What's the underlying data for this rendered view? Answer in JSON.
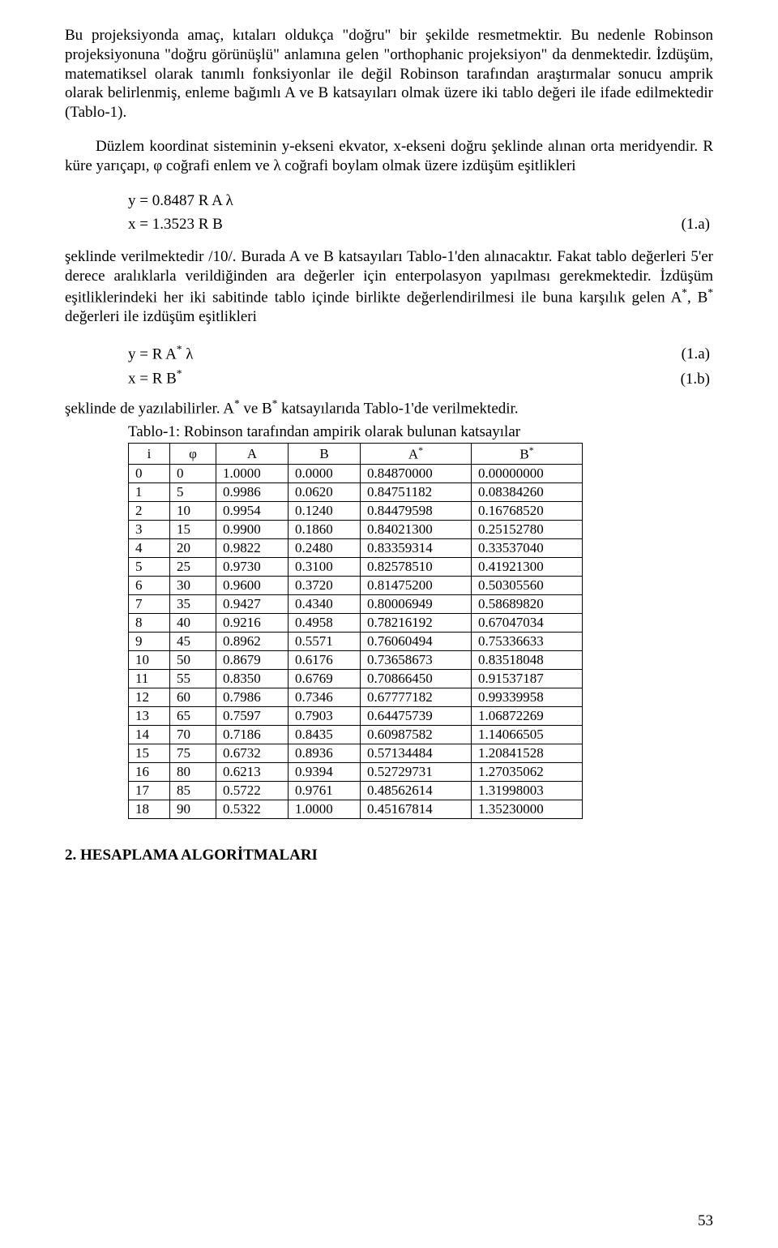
{
  "paragraphs": {
    "p1": "Bu projeksiyonda amaç, kıtaları oldukça \"doğru\" bir şekilde resmetmektir. Bu nedenle Robinson projeksiyonuna \"doğru görünüşlü\" anlamına gelen \"orthophanic projeksiyon\" da denmektedir. İzdüşüm, matematiksel olarak tanımlı fonksiyonlar ile değil Robinson tarafından araştırmalar sonucu amprik olarak belirlenmiş, enleme bağımlı A ve B katsayıları olmak üzere iki tablo değeri ile ifade edilmektedir (Tablo-1).",
    "p2": "Düzlem koordinat sisteminin y-ekseni ekvator, x-ekseni doğru şeklinde alınan orta meridyendir. R küre yarıçapı, φ coğrafi enlem ve λ coğrafi boylam olmak üzere izdüşüm eşitlikleri",
    "p3_prefix": "şeklinde verilmektedir /10/. Burada A ve B katsayıları Tablo-1'den alınacaktır. Fakat tablo değerleri 5'er derece aralıklarla verildiğinden ara değerler için enterpolasyon yapılması gerekmektedir. İzdüşüm eşitliklerindeki her iki sabitinde tablo içinde birlikte değerlendirilmesi ile buna karşılık gelen A",
    "p3_mid1": ", B",
    "p3_suffix": " değerleri ile izdüşüm eşitlikleri",
    "p4_prefix": "şeklinde de yazılabilirler. A",
    "p4_mid": " ve B",
    "p4_suffix": " katsayılarıda Tablo-1'de verilmektedir."
  },
  "equations": {
    "eq1a": {
      "text": "y = 0.8487 R A λ",
      "num": ""
    },
    "eq1b": {
      "text": "x = 1.3523 R B",
      "num": "(1.a)"
    },
    "eq2a": {
      "lhs_prefix": "y = R A",
      "lhs_suffix": " λ",
      "num": "(1.a)"
    },
    "eq2b": {
      "lhs_prefix": "x = R B",
      "lhs_suffix": "",
      "num": "(1.b)"
    }
  },
  "table": {
    "caption": "Tablo-1: Robinson tarafından ampirik olarak bulunan katsayılar",
    "headers": {
      "i": "i",
      "phi": "φ",
      "A": "A",
      "B": "B",
      "Astar": "A",
      "Bstar": "B",
      "star": "*"
    },
    "rows": [
      {
        "i": "0",
        "phi": "0",
        "A": "1.0000",
        "B": "0.0000",
        "As": "0.84870000",
        "Bs": "0.00000000"
      },
      {
        "i": "1",
        "phi": "5",
        "A": "0.9986",
        "B": "0.0620",
        "As": "0.84751182",
        "Bs": "0.08384260"
      },
      {
        "i": "2",
        "phi": "10",
        "A": "0.9954",
        "B": "0.1240",
        "As": "0.84479598",
        "Bs": "0.16768520"
      },
      {
        "i": "3",
        "phi": "15",
        "A": "0.9900",
        "B": "0.1860",
        "As": "0.84021300",
        "Bs": "0.25152780"
      },
      {
        "i": "4",
        "phi": "20",
        "A": "0.9822",
        "B": "0.2480",
        "As": "0.83359314",
        "Bs": "0.33537040"
      },
      {
        "i": "5",
        "phi": "25",
        "A": "0.9730",
        "B": "0.3100",
        "As": "0.82578510",
        "Bs": "0.41921300"
      },
      {
        "i": "6",
        "phi": "30",
        "A": "0.9600",
        "B": "0.3720",
        "As": "0.81475200",
        "Bs": "0.50305560"
      },
      {
        "i": "7",
        "phi": "35",
        "A": "0.9427",
        "B": "0.4340",
        "As": "0.80006949",
        "Bs": "0.58689820"
      },
      {
        "i": "8",
        "phi": "40",
        "A": "0.9216",
        "B": "0.4958",
        "As": "0.78216192",
        "Bs": "0.67047034"
      },
      {
        "i": "9",
        "phi": "45",
        "A": "0.8962",
        "B": "0.5571",
        "As": "0.76060494",
        "Bs": "0.75336633"
      },
      {
        "i": "10",
        "phi": "50",
        "A": "0.8679",
        "B": "0.6176",
        "As": "0.73658673",
        "Bs": "0.83518048"
      },
      {
        "i": "11",
        "phi": "55",
        "A": "0.8350",
        "B": "0.6769",
        "As": "0.70866450",
        "Bs": "0.91537187"
      },
      {
        "i": "12",
        "phi": "60",
        "A": "0.7986",
        "B": "0.7346",
        "As": "0.67777182",
        "Bs": "0.99339958"
      },
      {
        "i": "13",
        "phi": "65",
        "A": "0.7597",
        "B": "0.7903",
        "As": "0.64475739",
        "Bs": "1.06872269"
      },
      {
        "i": "14",
        "phi": "70",
        "A": "0.7186",
        "B": "0.8435",
        "As": "0.60987582",
        "Bs": "1.14066505"
      },
      {
        "i": "15",
        "phi": "75",
        "A": "0.6732",
        "B": "0.8936",
        "As": "0.57134484",
        "Bs": "1.20841528"
      },
      {
        "i": "16",
        "phi": "80",
        "A": "0.6213",
        "B": "0.9394",
        "As": "0.52729731",
        "Bs": "1.27035062"
      },
      {
        "i": "17",
        "phi": "85",
        "A": "0.5722",
        "B": "0.9761",
        "As": "0.48562614",
        "Bs": "1.31998003"
      },
      {
        "i": "18",
        "phi": "90",
        "A": "0.5322",
        "B": "1.0000",
        "As": "0.45167814",
        "Bs": "1.35230000"
      }
    ]
  },
  "section_heading": "2. HESAPLAMA ALGORİTMALARI",
  "page_number": "53"
}
